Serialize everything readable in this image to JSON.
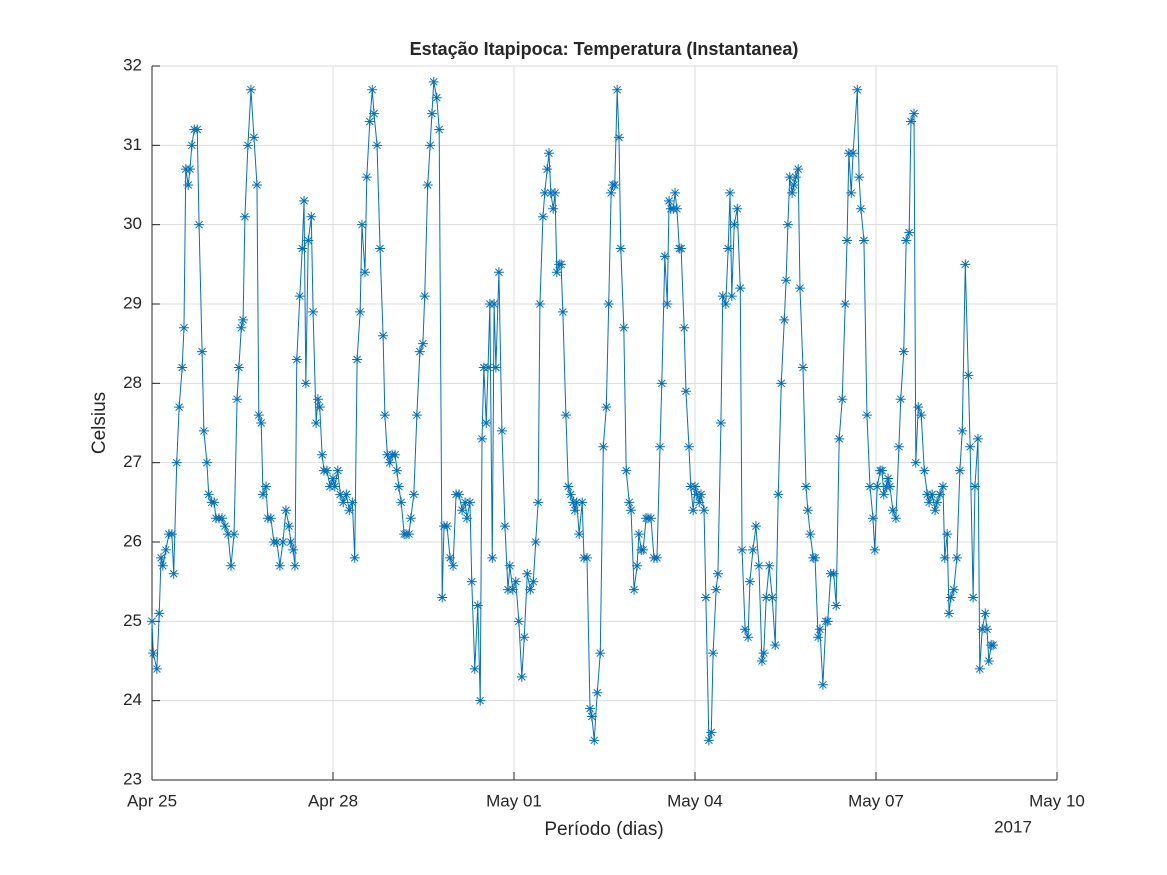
{
  "chart_data": {
    "type": "line",
    "title": "Estação Itapipoca: Temperatura (Instantanea)",
    "x_label": "Período (dias)",
    "y_label": "Celsius",
    "x_secondary_label": "2017",
    "color": "#0072bd",
    "marker": "*",
    "grid": true,
    "xlim": [
      0,
      15
    ],
    "xticks": [
      {
        "value": 0,
        "label": "Apr 25"
      },
      {
        "value": 3,
        "label": "Apr 28"
      },
      {
        "value": 6,
        "label": "May 01"
      },
      {
        "value": 9,
        "label": "May 04"
      },
      {
        "value": 12,
        "label": "May 07"
      },
      {
        "value": 15,
        "label": "May 10"
      }
    ],
    "ylim": [
      23,
      32
    ],
    "yticks": [
      23,
      24,
      25,
      26,
      27,
      28,
      29,
      30,
      31,
      32
    ],
    "x": [
      0,
      0.02,
      0.08,
      0.12,
      0.15,
      0.18,
      0.23,
      0.28,
      0.33,
      0.36,
      0.41,
      0.45,
      0.5,
      0.53,
      0.56,
      0.6,
      0.63,
      0.66,
      0.7,
      0.75,
      0.78,
      0.83,
      0.86,
      0.91,
      0.94,
      0.99,
      1.03,
      1.06,
      1.11,
      1.16,
      1.21,
      1.26,
      1.31,
      1.36,
      1.41,
      1.44,
      1.48,
      1.51,
      1.54,
      1.59,
      1.64,
      1.69,
      1.74,
      1.77,
      1.81,
      1.84,
      1.89,
      1.92,
      1.97,
      2.02,
      2.07,
      2.12,
      2.17,
      2.22,
      2.27,
      2.3,
      2.34,
      2.37,
      2.4,
      2.45,
      2.49,
      2.52,
      2.55,
      2.59,
      2.64,
      2.67,
      2.72,
      2.75,
      2.78,
      2.82,
      2.85,
      2.9,
      2.95,
      3.0,
      3.03,
      3.08,
      3.12,
      3.17,
      3.22,
      3.27,
      3.32,
      3.36,
      3.4,
      3.45,
      3.48,
      3.53,
      3.56,
      3.61,
      3.65,
      3.68,
      3.73,
      3.78,
      3.83,
      3.86,
      3.9,
      3.94,
      3.98,
      4.03,
      4.06,
      4.09,
      4.13,
      4.18,
      4.21,
      4.26,
      4.29,
      4.34,
      4.39,
      4.44,
      4.49,
      4.52,
      4.57,
      4.61,
      4.64,
      4.67,
      4.72,
      4.76,
      4.81,
      4.84,
      4.89,
      4.94,
      4.99,
      5.04,
      5.09,
      5.14,
      5.19,
      5.22,
      5.27,
      5.3,
      5.35,
      5.4,
      5.44,
      5.47,
      5.5,
      5.54,
      5.57,
      5.6,
      5.64,
      5.67,
      5.7,
      5.75,
      5.8,
      5.85,
      5.9,
      5.93,
      5.98,
      6.03,
      6.08,
      6.13,
      6.17,
      6.22,
      6.27,
      6.32,
      6.36,
      6.4,
      6.43,
      6.48,
      6.51,
      6.55,
      6.58,
      6.61,
      6.65,
      6.68,
      6.71,
      6.75,
      6.78,
      6.81,
      6.86,
      6.9,
      6.94,
      6.98,
      7.01,
      7.04,
      7.08,
      7.13,
      7.16,
      7.21,
      7.26,
      7.29,
      7.33,
      7.38,
      7.43,
      7.48,
      7.53,
      7.57,
      7.61,
      7.64,
      7.67,
      7.71,
      7.74,
      7.77,
      7.82,
      7.86,
      7.91,
      7.94,
      7.99,
      8.04,
      8.07,
      8.11,
      8.14,
      8.19,
      8.22,
      8.27,
      8.32,
      8.37,
      8.42,
      8.45,
      8.5,
      8.54,
      8.57,
      8.6,
      8.64,
      8.67,
      8.7,
      8.74,
      8.77,
      8.82,
      8.85,
      8.9,
      8.93,
      8.97,
      9.0,
      9.03,
      9.07,
      9.1,
      9.15,
      9.18,
      9.23,
      9.27,
      9.3,
      9.35,
      9.38,
      9.43,
      9.46,
      9.51,
      9.55,
      9.58,
      9.61,
      9.65,
      9.7,
      9.75,
      9.78,
      9.83,
      9.88,
      9.91,
      9.96,
      10.01,
      10.06,
      10.11,
      10.14,
      10.18,
      10.23,
      10.28,
      10.33,
      10.38,
      10.43,
      10.48,
      10.51,
      10.54,
      10.57,
      10.61,
      10.64,
      10.67,
      10.71,
      10.74,
      10.79,
      10.84,
      10.87,
      10.91,
      10.96,
      10.99,
      11.04,
      11.07,
      11.12,
      11.17,
      11.2,
      11.25,
      11.3,
      11.34,
      11.39,
      11.44,
      11.49,
      11.52,
      11.55,
      11.59,
      11.62,
      11.69,
      11.72,
      11.75,
      11.8,
      11.85,
      11.9,
      11.95,
      11.98,
      12.02,
      12.07,
      12.1,
      12.13,
      12.17,
      12.2,
      12.23,
      12.28,
      12.33,
      12.38,
      12.41,
      12.46,
      12.5,
      12.55,
      12.58,
      12.63,
      12.66,
      12.7,
      12.75,
      12.8,
      12.85,
      12.88,
      12.93,
      12.98,
      13.01,
      13.06,
      13.11,
      13.14,
      13.18,
      13.21,
      13.24,
      13.29,
      13.34,
      13.39,
      13.43,
      13.48,
      13.53,
      13.56,
      13.61,
      13.64,
      13.69,
      13.72,
      13.76,
      13.81,
      13.84,
      13.87,
      13.91,
      13.94
    ],
    "values": [
      25.0,
      24.6,
      24.4,
      25.1,
      25.8,
      25.7,
      25.9,
      26.1,
      26.1,
      25.6,
      27.0,
      27.7,
      28.2,
      28.7,
      30.7,
      30.5,
      30.7,
      31.0,
      31.2,
      31.2,
      30.0,
      28.4,
      27.4,
      27.0,
      26.6,
      26.5,
      26.5,
      26.3,
      26.3,
      26.3,
      26.2,
      26.1,
      25.7,
      26.1,
      27.8,
      28.2,
      28.7,
      28.8,
      30.1,
      31.0,
      31.7,
      31.1,
      30.5,
      27.6,
      27.5,
      26.6,
      26.7,
      26.3,
      26.3,
      26.0,
      26.0,
      25.7,
      26.0,
      26.4,
      26.2,
      26.0,
      25.9,
      25.7,
      28.3,
      29.1,
      29.7,
      30.3,
      28.0,
      29.8,
      30.1,
      28.9,
      27.5,
      27.8,
      27.7,
      27.1,
      26.9,
      26.9,
      26.7,
      26.8,
      26.7,
      26.9,
      26.6,
      26.5,
      26.6,
      26.4,
      26.5,
      25.8,
      28.3,
      28.9,
      30.0,
      29.4,
      30.6,
      31.3,
      31.7,
      31.4,
      31.0,
      29.7,
      28.6,
      27.6,
      27.1,
      27.0,
      27.1,
      27.1,
      26.9,
      26.7,
      26.5,
      26.1,
      26.1,
      26.1,
      26.3,
      26.6,
      27.6,
      28.4,
      28.5,
      29.1,
      30.5,
      31.0,
      31.4,
      31.8,
      31.6,
      31.2,
      25.3,
      26.2,
      26.2,
      25.8,
      25.7,
      26.6,
      26.6,
      26.4,
      26.5,
      26.3,
      26.5,
      25.5,
      24.4,
      25.2,
      24.0,
      27.3,
      28.2,
      27.5,
      28.2,
      29.0,
      25.8,
      29.0,
      28.2,
      29.4,
      27.4,
      26.2,
      25.4,
      25.7,
      25.4,
      25.5,
      25.0,
      24.3,
      24.8,
      25.6,
      25.4,
      25.5,
      26.0,
      26.5,
      29.0,
      30.1,
      30.4,
      30.7,
      30.9,
      30.4,
      30.2,
      30.4,
      29.4,
      29.5,
      29.5,
      28.9,
      27.6,
      26.7,
      26.6,
      26.5,
      26.4,
      26.5,
      26.1,
      26.5,
      25.8,
      25.8,
      23.9,
      23.8,
      23.5,
      24.1,
      24.6,
      27.2,
      27.7,
      29.0,
      30.4,
      30.5,
      30.5,
      31.7,
      31.1,
      29.7,
      28.7,
      26.9,
      26.5,
      26.4,
      25.4,
      25.7,
      26.1,
      25.9,
      25.9,
      26.3,
      26.3,
      26.3,
      25.8,
      25.8,
      27.2,
      28.0,
      29.6,
      29.0,
      30.3,
      30.2,
      30.2,
      30.4,
      30.2,
      29.7,
      29.7,
      28.7,
      27.9,
      27.2,
      26.7,
      26.4,
      26.7,
      26.6,
      26.5,
      26.6,
      26.4,
      25.3,
      23.5,
      23.6,
      24.6,
      25.4,
      25.6,
      27.5,
      29.1,
      29.0,
      29.7,
      30.4,
      29.1,
      30.0,
      30.2,
      29.2,
      25.9,
      24.9,
      24.8,
      25.5,
      25.9,
      26.2,
      25.7,
      24.5,
      24.6,
      25.3,
      25.7,
      25.3,
      24.7,
      26.6,
      28.0,
      28.8,
      29.3,
      30.0,
      30.6,
      30.4,
      30.5,
      30.6,
      30.7,
      29.2,
      28.2,
      26.7,
      26.4,
      26.1,
      25.8,
      25.8,
      24.8,
      24.9,
      24.2,
      25.0,
      25.0,
      25.6,
      25.6,
      25.2,
      27.3,
      27.8,
      29.0,
      29.8,
      30.9,
      30.4,
      30.9,
      31.7,
      30.6,
      30.2,
      29.8,
      27.6,
      26.7,
      26.3,
      25.9,
      26.7,
      26.9,
      26.9,
      26.6,
      26.7,
      26.8,
      26.7,
      26.4,
      26.3,
      27.2,
      27.8,
      28.4,
      29.8,
      29.9,
      31.3,
      31.4,
      27.0,
      27.7,
      27.6,
      26.9,
      26.6,
      26.5,
      26.6,
      26.4,
      26.5,
      26.6,
      26.7,
      25.8,
      26.1,
      25.1,
      25.3,
      25.4,
      25.8,
      26.9,
      27.4,
      29.5,
      28.1,
      27.2,
      25.3,
      26.7,
      27.3,
      24.4,
      24.9,
      25.1,
      24.9,
      24.5,
      24.7,
      24.7
    ]
  }
}
